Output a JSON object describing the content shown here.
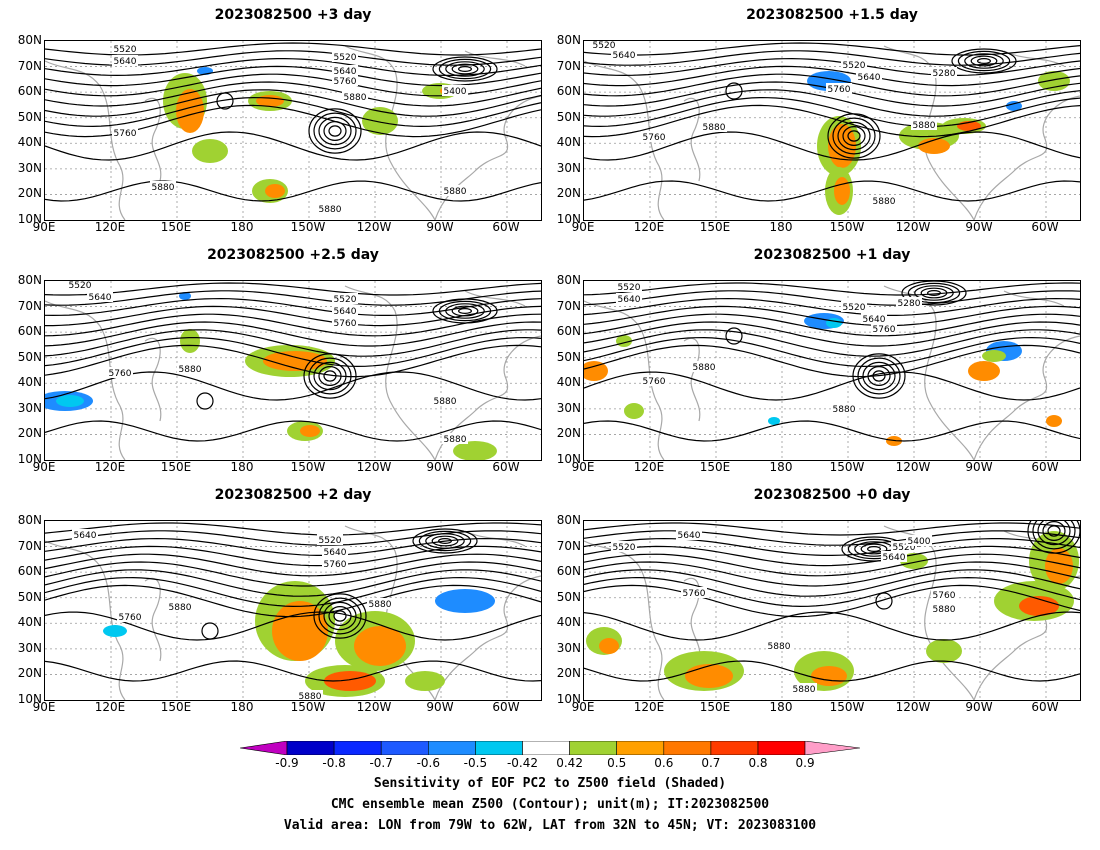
{
  "panels": [
    {
      "title": "2023082500  +3 day",
      "contour_labels": [
        "5520",
        "5640",
        "5520",
        "5640",
        "5760",
        "5400",
        "5880",
        "5760",
        "5880",
        "5880",
        "5880"
      ]
    },
    {
      "title": "2023082500  +1.5 day",
      "contour_labels": [
        "5520",
        "5640",
        "5520",
        "5640",
        "5760",
        "5280",
        "5880",
        "5760",
        "5880",
        "5880"
      ]
    },
    {
      "title": "2023082500  +2.5 day",
      "contour_labels": [
        "5520",
        "5640",
        "5520",
        "5640",
        "5760",
        "5760",
        "5880",
        "5880",
        "5880"
      ]
    },
    {
      "title": "2023082500  +1 day",
      "contour_labels": [
        "5520",
        "5640",
        "5520",
        "5640",
        "5760",
        "5280",
        "5760",
        "5880",
        "5880"
      ]
    },
    {
      "title": "2023082500  +2 day",
      "contour_labels": [
        "5640",
        "5520",
        "5640",
        "5760",
        "5760",
        "5880",
        "5880",
        "5880"
      ]
    },
    {
      "title": "2023082500  +0 day",
      "contour_labels": [
        "5640",
        "5520",
        "5520",
        "5400",
        "5640",
        "5760",
        "5760",
        "5880",
        "5880",
        "5880"
      ]
    }
  ],
  "lat_labels": [
    "80N",
    "70N",
    "60N",
    "50N",
    "40N",
    "30N",
    "20N",
    "10N"
  ],
  "lon_labels": [
    "90E",
    "120E",
    "150E",
    "180",
    "150W",
    "120W",
    "90W",
    "60W"
  ],
  "colorbar": {
    "ticks": [
      "-0.9",
      "-0.8",
      "-0.7",
      "-0.6",
      "-0.5",
      "-0.42",
      "0.42",
      "0.5",
      "0.6",
      "0.7",
      "0.8",
      "0.9"
    ],
    "colors": [
      "#c000c0",
      "#0000c8",
      "#0a28ff",
      "#1e5aff",
      "#1e8cff",
      "#00c8f0",
      "#ffffff",
      "#a0d232",
      "#ffa000",
      "#ff7800",
      "#ff3c00",
      "#ff0000",
      "#ff9ec8"
    ]
  },
  "caption": {
    "line1": "Sensitivity of EOF PC2 to Z500 field (Shaded)",
    "line2": "CMC ensemble mean Z500 (Contour); unit(m); IT:2023082500",
    "line3": "Valid area: LON from 79W to 62W, LAT from 32N to 45N; VT: 2023083100"
  }
}
